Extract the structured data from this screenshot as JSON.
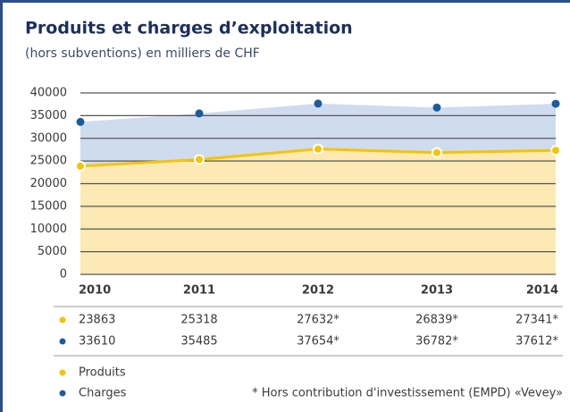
{
  "chart_data": {
    "type": "area",
    "title": "Produits et charges d’exploitation",
    "subtitle": "(hors subventions) en milliers de CHF",
    "categories": [
      "2010",
      "2011",
      "2012",
      "2013",
      "2014"
    ],
    "series": [
      {
        "name": "Produits",
        "color": "#f5c400",
        "fill": "#fde9b3",
        "values": [
          23863,
          25318,
          27632,
          26839,
          27341
        ],
        "value_labels": [
          "23863",
          "25318",
          "27632*",
          "26839*",
          "27341*"
        ]
      },
      {
        "name": "Charges",
        "color": "#1b5c9e",
        "fill": "#cfdcef",
        "values": [
          33610,
          35485,
          37654,
          36782,
          37612
        ],
        "value_labels": [
          "33610",
          "35485",
          "37654*",
          "36782*",
          "37612*"
        ]
      }
    ],
    "ylim": [
      0,
      40000
    ],
    "yticks": [
      0,
      5000,
      10000,
      15000,
      20000,
      25000,
      30000,
      35000,
      40000
    ],
    "grid": true,
    "footnote": "* Hors contribution d'investissement (EMPD) «Vevey»"
  }
}
